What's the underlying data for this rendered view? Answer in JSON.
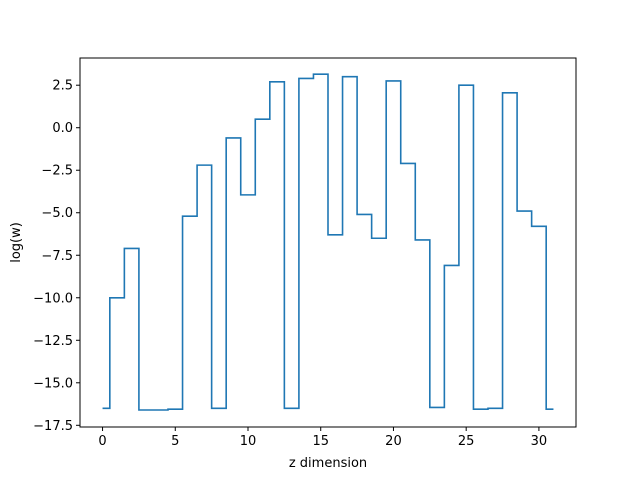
{
  "chart_data": {
    "type": "line",
    "drawstyle": "steps-mid",
    "title": "",
    "xlabel": "z dimension",
    "ylabel": "log(w)",
    "xlim": [
      -1.55,
      32.55
    ],
    "ylim": [
      -17.6,
      4.1
    ],
    "xticks": [
      0,
      5,
      10,
      15,
      20,
      25,
      30
    ],
    "yticks": [
      -17.5,
      -15.0,
      -12.5,
      -10.0,
      -7.5,
      -5.0,
      -2.5,
      0.0,
      2.5
    ],
    "ytick_labels": [
      "−17.5",
      "−15.0",
      "−12.5",
      "−10.0",
      "−7.5",
      "−5.0",
      "−2.5",
      "0.0",
      "2.5"
    ],
    "grid": false,
    "series": [
      {
        "color": "#1f77b4",
        "x": [
          0,
          1,
          2,
          3,
          4,
          5,
          6,
          7,
          8,
          9,
          10,
          11,
          12,
          13,
          14,
          15,
          16,
          17,
          18,
          19,
          20,
          21,
          22,
          23,
          24,
          25,
          26,
          27,
          28,
          29,
          30,
          31
        ],
        "y": [
          -16.5,
          -10.0,
          -7.1,
          -16.6,
          -16.6,
          -16.55,
          -5.2,
          -2.2,
          -16.5,
          -0.6,
          -3.95,
          0.5,
          2.7,
          -16.5,
          2.9,
          3.15,
          -6.3,
          3.0,
          -5.1,
          -6.5,
          2.75,
          -2.1,
          -6.6,
          -16.45,
          -8.1,
          2.5,
          -16.55,
          -16.5,
          2.05,
          -4.9,
          -5.8,
          -16.55
        ]
      }
    ]
  }
}
